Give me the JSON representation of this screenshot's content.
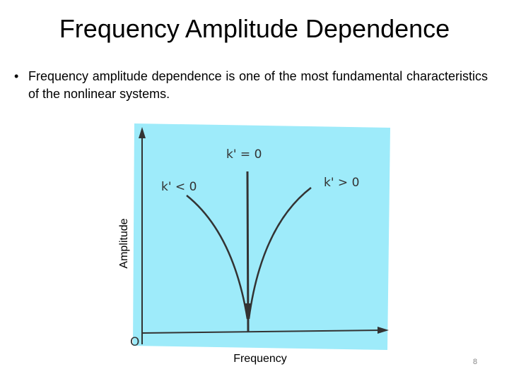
{
  "header": {
    "title": "Frequency Amplitude Dependence"
  },
  "bullets": [
    "Frequency amplitude dependence is one of the most fundamental characteristics of the nonlinear systems."
  ],
  "figure": {
    "labels": {
      "center": "k' = 0",
      "left": "k' < 0",
      "right": "k' > 0",
      "origin": "O"
    },
    "y_axis_label": "Amplitude",
    "x_axis_label": "Frequency"
  },
  "footer": {
    "page_number": "8"
  }
}
